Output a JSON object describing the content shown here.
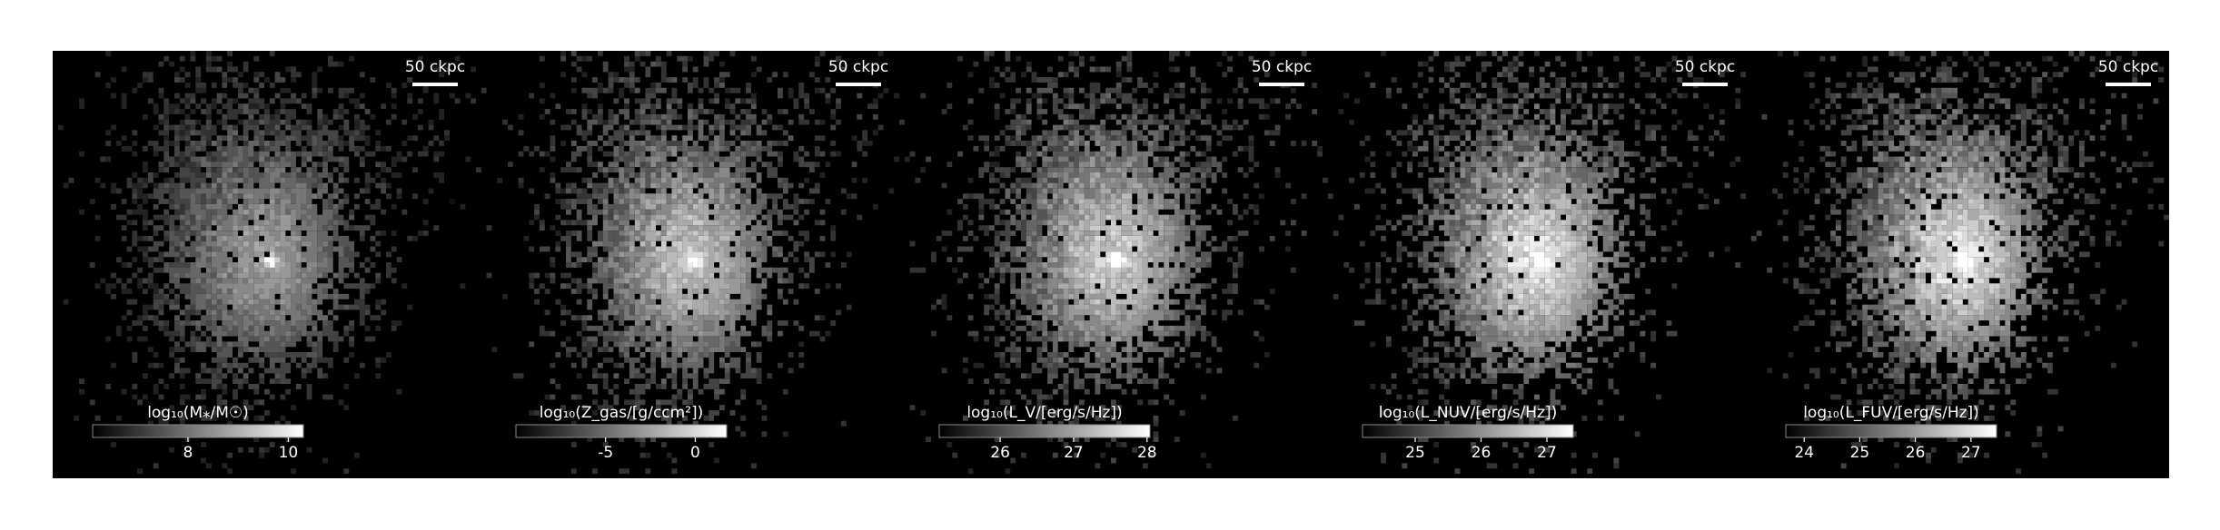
{
  "chart_data": [
    {
      "type": "image",
      "colormap": "gray",
      "scalebar_label": "50 ckpc",
      "colorbar_label": "log₁₀(M⁎/M☉)",
      "clim": [
        6.1,
        10.3
      ],
      "cticks": [
        8,
        10
      ]
    },
    {
      "type": "image",
      "colormap": "gray",
      "scalebar_label": "50 ckpc",
      "colorbar_label": "log₁₀(Z_gas/[g/ccm²])",
      "clim": [
        -10,
        1.75
      ],
      "cticks": [
        -5,
        0
      ]
    },
    {
      "type": "image",
      "colormap": "gray",
      "scalebar_label": "50 ckpc",
      "colorbar_label": "log₁₀(L_V/[erg/s/Hz])",
      "clim": [
        25.17,
        28.04
      ],
      "cticks": [
        26,
        27,
        28
      ]
    },
    {
      "type": "image",
      "colormap": "gray",
      "scalebar_label": "50 ckpc",
      "colorbar_label": "log₁₀(L_NUV/[erg/s/Hz])",
      "clim": [
        24.2,
        27.4
      ],
      "cticks": [
        25,
        26,
        27
      ]
    },
    {
      "type": "image",
      "colormap": "gray",
      "scalebar_label": "50 ckpc",
      "colorbar_label": "log₁₀(L_FUV/[erg/s/Hz])",
      "clim": [
        23.67,
        27.46
      ],
      "cticks": [
        24,
        25,
        26,
        27
      ]
    }
  ]
}
